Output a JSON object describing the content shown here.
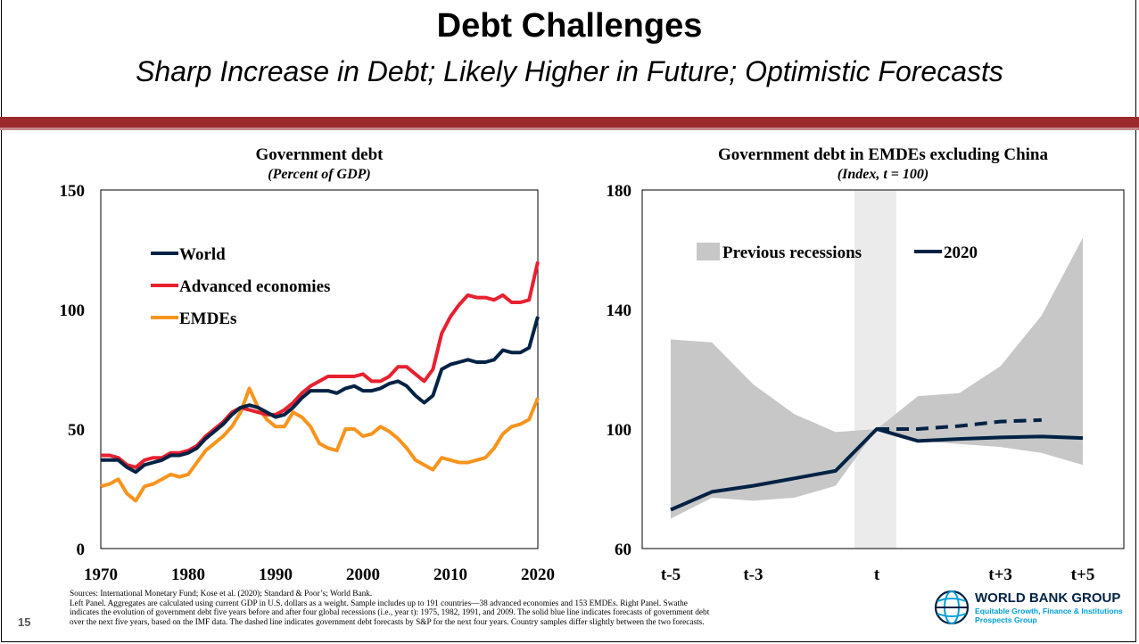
{
  "slide": {
    "title": "Debt Challenges",
    "subtitle": "Sharp Increase in Debt; Likely Higher in Future; Optimistic Forecasts",
    "page_number": "15",
    "accent_color": "#9b2a2d"
  },
  "sources": [
    "Sources: International Monetary Fund; Kose et al. (2020); Standard & Poor’s; World Bank.",
    "Left Panel. Aggregates are calculated using current GDP in U.S. dollars as a weight. Sample includes up to 191 countries—38 advanced economies and 153 EMDEs. Right Panel. Swathe",
    "indicates the evolution of government debt five years before and after four global recessions (i.e., year t): 1975, 1982, 1991, and 2009. The solid blue line indicates forecasts of government debt",
    "over the next five years, based on the IMF data. The dashed line indicates government debt forecasts by S&P for the next four years. Country samples differ slightly between the two forecasts."
  ],
  "logo": {
    "name": "WORLD BANK GROUP",
    "tagline": "Equitable Growth, Finance & Institutions",
    "tagline2": "Prospects Group",
    "icon": "globe-icon"
  },
  "chart_data": [
    {
      "type": "line",
      "title": "Government debt",
      "subtitle": "(Percent of GDP)",
      "xlabel": "",
      "ylabel": "",
      "xlim": [
        1970,
        2020
      ],
      "ylim": [
        0,
        150
      ],
      "x_ticks": [
        "1970",
        "1980",
        "1990",
        "2000",
        "2010",
        "2020"
      ],
      "y_ticks": [
        "0",
        "50",
        "100",
        "150"
      ],
      "legend_position": "top-left",
      "grid": false,
      "x": [
        1970,
        1971,
        1972,
        1973,
        1974,
        1975,
        1976,
        1977,
        1978,
        1979,
        1980,
        1981,
        1982,
        1983,
        1984,
        1985,
        1986,
        1987,
        1988,
        1989,
        1990,
        1991,
        1992,
        1993,
        1994,
        1995,
        1996,
        1997,
        1998,
        1999,
        2000,
        2001,
        2002,
        2003,
        2004,
        2005,
        2006,
        2007,
        2008,
        2009,
        2010,
        2011,
        2012,
        2013,
        2014,
        2015,
        2016,
        2017,
        2018,
        2019,
        2020
      ],
      "series": [
        {
          "name": "World",
          "color": "#002244",
          "values": [
            37,
            37,
            37,
            34,
            32,
            35,
            36,
            37,
            39,
            39,
            40,
            42,
            46,
            49,
            52,
            56,
            59,
            60,
            59,
            57,
            55,
            56,
            59,
            63,
            66,
            66,
            66,
            65,
            67,
            68,
            66,
            66,
            67,
            69,
            70,
            68,
            64,
            61,
            64,
            75,
            77,
            78,
            79,
            78,
            78,
            79,
            83,
            82,
            82,
            84,
            97
          ]
        },
        {
          "name": "Advanced economies",
          "color": "#e8202f",
          "values": [
            39,
            39,
            38,
            35,
            34,
            37,
            38,
            38,
            40,
            40,
            41,
            43,
            47,
            50,
            53,
            57,
            59,
            58,
            57,
            56,
            56,
            58,
            61,
            65,
            68,
            70,
            72,
            72,
            72,
            72,
            73,
            70,
            70,
            72,
            76,
            76,
            73,
            70,
            75,
            90,
            97,
            102,
            106,
            105,
            105,
            104,
            106,
            103,
            103,
            104,
            120
          ]
        },
        {
          "name": "EMDEs",
          "color": "#f7941d",
          "values": [
            26,
            27,
            29,
            23,
            20,
            26,
            27,
            29,
            31,
            30,
            31,
            36,
            41,
            44,
            47,
            51,
            57,
            67,
            59,
            54,
            51,
            51,
            57,
            55,
            51,
            44,
            42,
            41,
            50,
            50,
            47,
            48,
            51,
            49,
            46,
            42,
            37,
            35,
            33,
            38,
            37,
            36,
            36,
            37,
            38,
            42,
            48,
            51,
            52,
            54,
            63
          ]
        }
      ]
    },
    {
      "type": "area",
      "title": "Government debt in EMDEs excluding China",
      "subtitle": "(Index, t = 100)",
      "xlabel": "",
      "ylabel": "",
      "xlim": [
        -5,
        5
      ],
      "ylim": [
        60,
        180
      ],
      "x_ticks": [
        "t-5",
        "t-3",
        "t",
        "t+3",
        "t+5"
      ],
      "y_ticks": [
        "60",
        "100",
        "140",
        "180"
      ],
      "legend_position": "top",
      "grid": false,
      "highlight_x": 0,
      "x": [
        -5,
        -4,
        -3,
        -2,
        -1,
        0,
        1,
        2,
        3,
        4,
        5
      ],
      "series": [
        {
          "name": "Previous recessions",
          "kind": "band",
          "color": "#c7c7c7",
          "lower": [
            70,
            77,
            76,
            77,
            81,
            100,
            96,
            95,
            94,
            92,
            88
          ],
          "upper": [
            130,
            129,
            115,
            105,
            99,
            100,
            111,
            112,
            121,
            138,
            164
          ]
        },
        {
          "name": "2020",
          "kind": "line",
          "color": "#002244",
          "x_values": [
            -5,
            -4,
            -3,
            -2,
            -1,
            0,
            1,
            2,
            3,
            4,
            5
          ],
          "values": [
            73,
            79,
            81,
            83.5,
            86,
            100,
            96,
            96.7,
            97.2,
            97.5,
            97
          ]
        },
        {
          "kind": "dashed",
          "color": "#002244",
          "x_values": [
            0,
            1,
            2,
            3,
            4
          ],
          "values": [
            100,
            100,
            101,
            102.5,
            103
          ]
        }
      ]
    }
  ]
}
